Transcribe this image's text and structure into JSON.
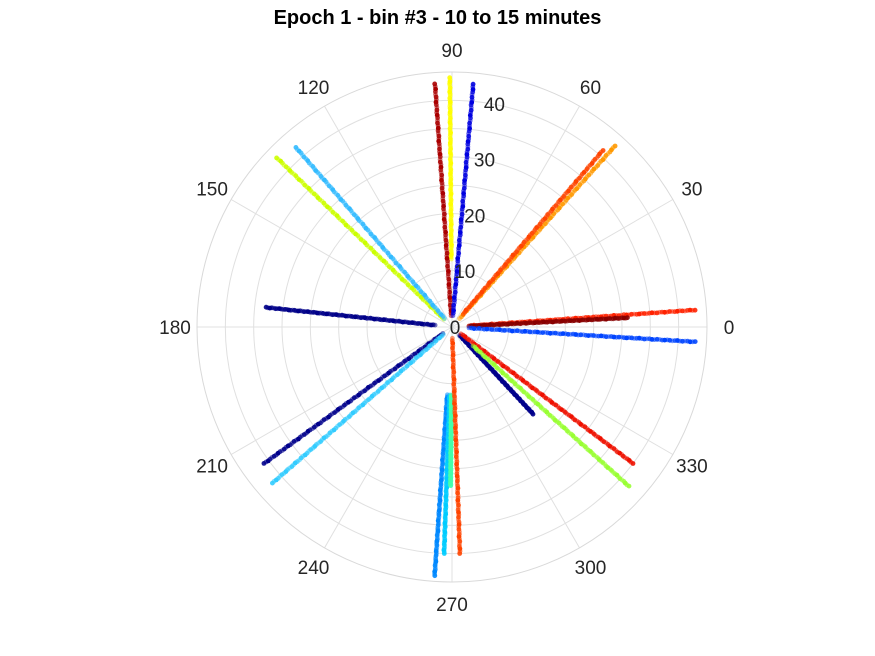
{
  "chart_data": {
    "type": "scatter",
    "subtype": "polar",
    "title": "Epoch 1 - bin #3 - 10 to 15 minutes",
    "angular_ticks": [
      "0",
      "30",
      "60",
      "90",
      "120",
      "150",
      "180",
      "210",
      "240",
      "270",
      "300",
      "330"
    ],
    "radial_ticks": [
      "0",
      "10",
      "20",
      "30",
      "40"
    ],
    "rlim": [
      0,
      45
    ],
    "grid": true,
    "colormap": "jet",
    "series": [
      {
        "color": "#ffff00",
        "azimuth_deg": 90.5,
        "r_range": [
          12,
          44
        ]
      },
      {
        "color": "#aa0000",
        "azimuth_deg": 94,
        "r_range": [
          2,
          43
        ]
      },
      {
        "color": "#0000e0",
        "azimuth_deg": 85,
        "r_range": [
          2,
          43
        ]
      },
      {
        "color": "#ff9900",
        "azimuth_deg": 48,
        "r_range": [
          2,
          43
        ]
      },
      {
        "color": "#ff4400",
        "azimuth_deg": 49.5,
        "r_range": [
          3,
          41
        ]
      },
      {
        "color": "#ff2200",
        "azimuth_deg": 4,
        "r_range": [
          3,
          43
        ]
      },
      {
        "color": "#880000",
        "azimuth_deg": 3,
        "r_range": [
          3,
          31
        ]
      },
      {
        "color": "#0044ff",
        "azimuth_deg": -3.5,
        "r_range": [
          3,
          43
        ]
      },
      {
        "color": "#ccff00",
        "azimuth_deg": 136,
        "r_range": [
          2,
          43
        ]
      },
      {
        "color": "#33bbff",
        "azimuth_deg": 131,
        "r_range": [
          2,
          42
        ]
      },
      {
        "color": "#000088",
        "azimuth_deg": 174,
        "r_range": [
          3,
          33
        ]
      },
      {
        "color": "#00008b",
        "azimuth_deg": 216,
        "r_range": [
          2,
          41
        ]
      },
      {
        "color": "#33ccff",
        "azimuth_deg": 221,
        "r_range": [
          2,
          42
        ]
      },
      {
        "color": "#0088ff",
        "azimuth_deg": 266,
        "r_range": [
          12,
          44
        ]
      },
      {
        "color": "#00ccff",
        "azimuth_deg": 268,
        "r_range": [
          12,
          40
        ]
      },
      {
        "color": "#44ffaa",
        "azimuth_deg": 269.5,
        "r_range": [
          12,
          28
        ]
      },
      {
        "color": "#ff4400",
        "azimuth_deg": 272,
        "r_range": [
          2,
          40
        ]
      },
      {
        "color": "#00008b",
        "azimuth_deg": 313,
        "r_range": [
          2,
          21
        ]
      },
      {
        "color": "#ee1100",
        "azimuth_deg": 323,
        "r_range": [
          2,
          40
        ]
      },
      {
        "color": "#99ff33",
        "azimuth_deg": 318,
        "r_range": [
          5,
          42
        ]
      }
    ]
  }
}
